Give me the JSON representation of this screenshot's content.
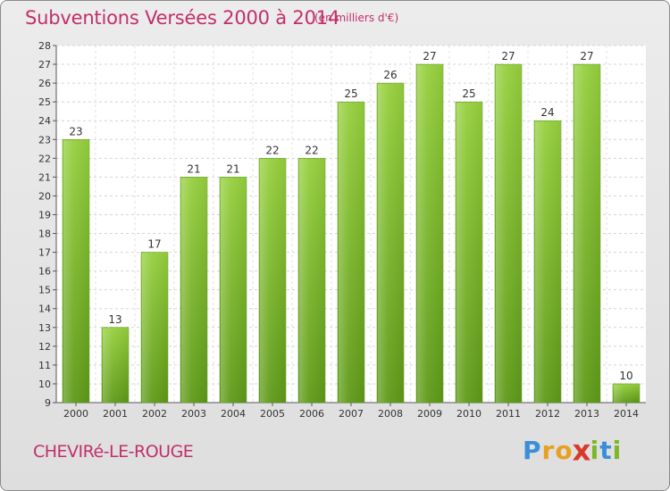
{
  "chart_data": {
    "type": "bar",
    "title": "Subventions Versées 2000 à 2014",
    "subtitle": "(en milliers d'€)",
    "xlabel": "",
    "ylabel": "",
    "categories": [
      "2000",
      "2001",
      "2002",
      "2003",
      "2004",
      "2005",
      "2006",
      "2007",
      "2008",
      "2009",
      "2010",
      "2011",
      "2012",
      "2013",
      "2014"
    ],
    "values": [
      23,
      13,
      17,
      21,
      21,
      22,
      22,
      25,
      26,
      27,
      25,
      27,
      24,
      27,
      10
    ],
    "ylim": [
      9,
      28
    ],
    "yticks": [
      9,
      10,
      11,
      12,
      13,
      14,
      15,
      16,
      17,
      18,
      19,
      20,
      21,
      22,
      23,
      24,
      25,
      26,
      27,
      28
    ],
    "grid": true,
    "bar_color": "#7cbf2e"
  },
  "footer": {
    "town": "CHEVIRé-LE-ROUGE",
    "brand_letters": [
      "P",
      "r",
      "o",
      "x",
      "i",
      "t",
      "i"
    ],
    "brand_colors": [
      "#3a8fd8",
      "#e8a020",
      "#e8a020",
      "#d83a2a",
      "#7ab828",
      "#3a8fd8",
      "#7ab828"
    ]
  }
}
